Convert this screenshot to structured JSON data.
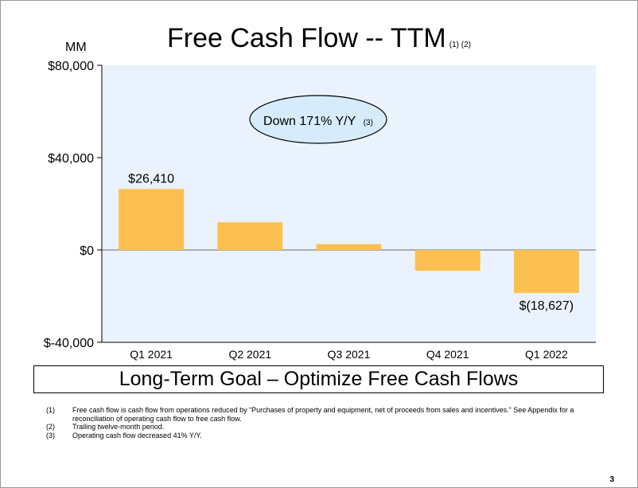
{
  "slide": {
    "title": "Free Cash Flow -- TTM",
    "title_note": "(1) (2)",
    "unit_label": "MM",
    "callout_text": "Down 171% Y/Y",
    "callout_note": "(3)",
    "goal_text": "Long-Term Goal – Optimize Free Cash Flows",
    "page_number": "3"
  },
  "footnotes": [
    {
      "num": "(1)",
      "text": "Free cash flow is cash flow from operations reduced by “Purchases of property and equipment, net of proceeds from sales and incentives.” See Appendix for a reconciliation of operating cash flow to free cash flow."
    },
    {
      "num": "(2)",
      "text": "Trailing twelve-month period."
    },
    {
      "num": "(3)",
      "text": "Operating cash flow decreased 41% Y/Y."
    }
  ],
  "chart_data": {
    "type": "bar",
    "title": "Free Cash Flow -- TTM",
    "ylabel": "MM",
    "xlabel": "",
    "categories": [
      "Q1 2021",
      "Q2 2021",
      "Q3 2021",
      "Q4 2021",
      "Q1 2022"
    ],
    "values": [
      26410,
      12000,
      2500,
      -9000,
      -18627
    ],
    "data_labels": [
      "$26,410",
      "",
      "",
      "",
      "$(18,627)"
    ],
    "ylim": [
      -40000,
      80000
    ],
    "yticks": [
      -40000,
      0,
      40000,
      80000
    ],
    "ytick_labels": [
      "$-40,000",
      "$0",
      "$40,000",
      "$80,000"
    ],
    "colors": {
      "bar": "#FDBF4F",
      "plot_bg": "#EAF3FD",
      "callout_fill": "#D6ECFB",
      "callout_stroke": "#000000"
    }
  }
}
